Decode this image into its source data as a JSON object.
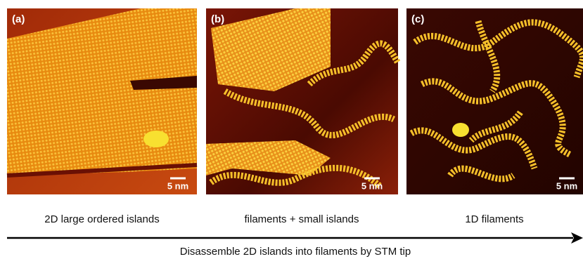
{
  "panels": [
    {
      "label": "(a)",
      "scale_bar": "5 nm",
      "caption": "2D large ordered islands"
    },
    {
      "label": "(b)",
      "scale_bar": "5 nm",
      "caption": "filaments + small islands"
    },
    {
      "label": "(c)",
      "scale_bar": "5 nm",
      "caption": "1D filaments"
    }
  ],
  "arrow_caption": "Disassemble 2D islands into filaments by STM tip"
}
